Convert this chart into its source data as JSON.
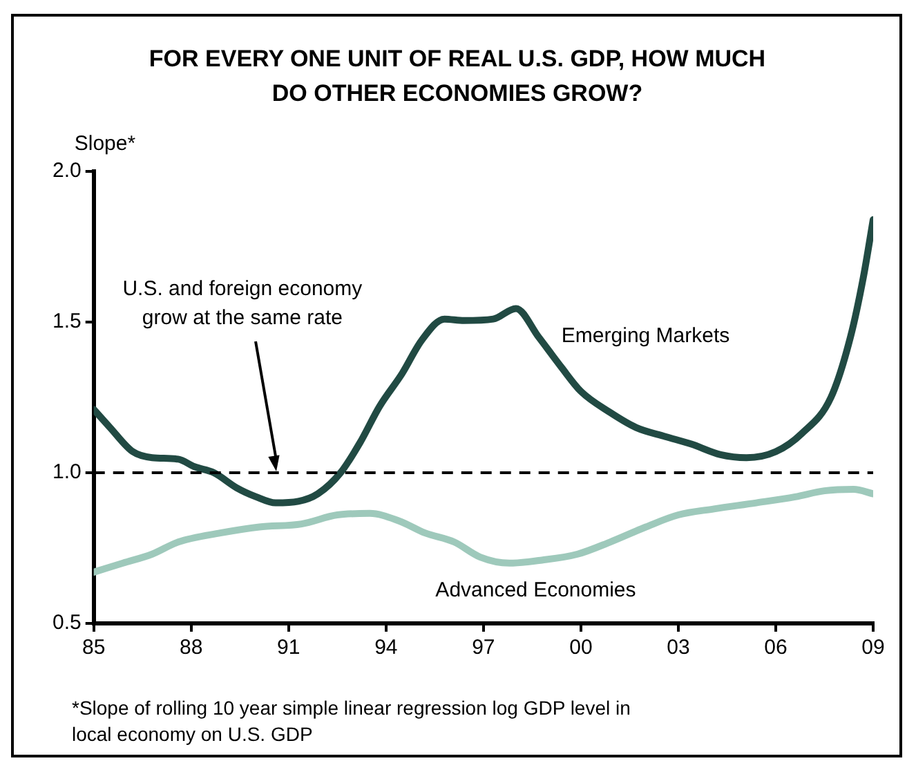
{
  "chart_data": {
    "type": "line",
    "title": "FOR EVERY ONE UNIT OF REAL U.S. GDP, HOW MUCH DO OTHER ECONOMIES GROW?",
    "ylabel": "Slope*",
    "xlim": [
      1985,
      2009
    ],
    "xticks": [
      {
        "value": 1985,
        "label": "85"
      },
      {
        "value": 1988,
        "label": "88"
      },
      {
        "value": 1991,
        "label": "91"
      },
      {
        "value": 1994,
        "label": "94"
      },
      {
        "value": 1997,
        "label": "97"
      },
      {
        "value": 2000,
        "label": "00"
      },
      {
        "value": 2003,
        "label": "03"
      },
      {
        "value": 2006,
        "label": "06"
      },
      {
        "value": 2009,
        "label": "09"
      }
    ],
    "ylim": [
      0.5,
      2.0
    ],
    "yticks": [
      0.5,
      {
        "value": 1,
        "label": "1.0"
      },
      1.5,
      {
        "value": 2,
        "label": "2.0"
      }
    ],
    "grid": false,
    "legend": false,
    "marker": "none",
    "line_style": "solid",
    "ref_lines": [
      {
        "axis": "y",
        "value": 1,
        "color": "#000000",
        "line_style": "dashed",
        "label": "U.S. and foreign economy grow at the same rate"
      }
    ],
    "annotations": [
      "*Slope of rolling 10 year simple linear regression log GDP level in local economy on U.S. GDP"
    ],
    "series": [
      {
        "name": "Emerging Markets",
        "color": "#214a43",
        "x": [
          1985,
          1985.5,
          1986.2,
          1986.8,
          1987.6,
          1988.1,
          1988.7,
          1989.4,
          1990,
          1990.6,
          1991.3,
          1991.9,
          1992.6,
          1993.2,
          1993.8,
          1994.5,
          1995.1,
          1995.8,
          1996.4,
          1997.3,
          1998,
          1998.7,
          1999.4,
          2000,
          2000.9,
          2001.7,
          2002.6,
          2003.4,
          2004.3,
          2005.1,
          2006,
          2006.8,
          2007.7,
          2008.3,
          2008.7,
          2009
        ],
        "values": [
          1.21,
          1.15,
          1.07,
          1.05,
          1.045,
          1.02,
          1.0,
          0.95,
          0.92,
          0.9,
          0.905,
          0.93,
          1.0,
          1.1,
          1.22,
          1.33,
          1.44,
          1.51,
          1.505,
          1.51,
          1.545,
          1.45,
          1.35,
          1.27,
          1.2,
          1.15,
          1.12,
          1.095,
          1.06,
          1.05,
          1.07,
          1.13,
          1.25,
          1.45,
          1.65,
          1.84
        ]
      },
      {
        "name": "Advanced Economies",
        "color": "#9ec9bb",
        "x": [
          1985,
          1985.9,
          1986.8,
          1987.6,
          1988.9,
          1990.1,
          1991.4,
          1992.5,
          1993.5,
          1994.4,
          1995.2,
          1996.1,
          1996.9,
          1997.8,
          1998.8,
          1999.9,
          2000.9,
          2002,
          2003,
          2004.1,
          2005.4,
          2006.6,
          2007.5,
          2008.4,
          2009
        ],
        "values": [
          0.67,
          0.7,
          0.73,
          0.77,
          0.8,
          0.82,
          0.83,
          0.86,
          0.865,
          0.84,
          0.8,
          0.77,
          0.72,
          0.7,
          0.71,
          0.73,
          0.77,
          0.82,
          0.86,
          0.88,
          0.9,
          0.92,
          0.94,
          0.945,
          0.93
        ]
      }
    ]
  }
}
